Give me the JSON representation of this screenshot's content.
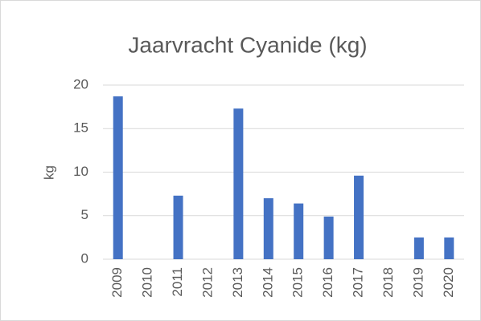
{
  "chart_data": {
    "type": "bar",
    "title": "Jaarvracht Cyanide (kg)",
    "y_label": "kg",
    "categories": [
      "2009",
      "2010",
      "2011",
      "2012",
      "2013",
      "2014",
      "2015",
      "2016",
      "2017",
      "2018",
      "2019",
      "2020"
    ],
    "values": [
      18.7,
      0,
      7.3,
      0,
      17.3,
      7.0,
      6.4,
      4.9,
      9.6,
      0,
      2.5,
      2.5
    ],
    "color": "#4472c4",
    "ylim": [
      0,
      20
    ],
    "yticks": [
      0,
      5,
      10,
      15,
      20
    ],
    "grid": true
  }
}
